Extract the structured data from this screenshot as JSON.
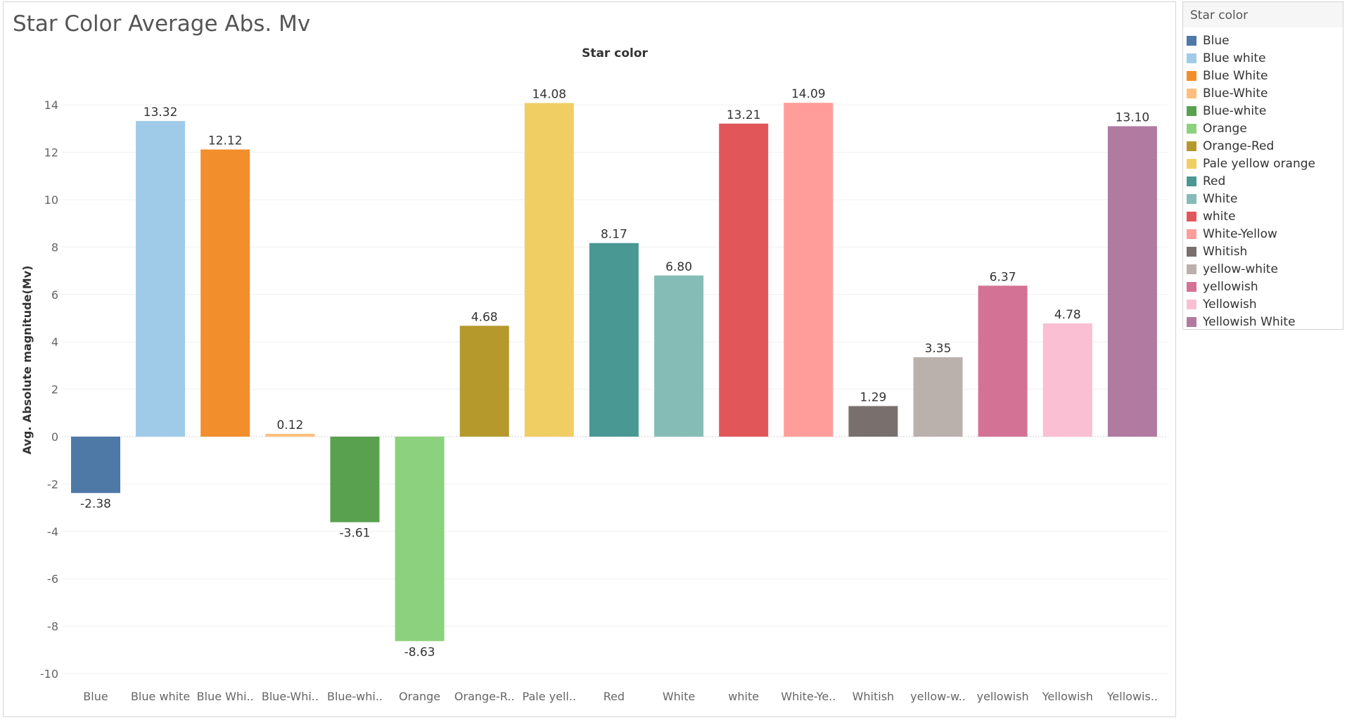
{
  "sheet": {
    "title": "Star Color Average Abs. Mv"
  },
  "chart_data": {
    "type": "bar",
    "title": "Star Color Average Abs. Mv",
    "column_header": "Star color",
    "ylabel": "Avg. Absolute magnitude(Mv)",
    "xlabel": "",
    "ylim": [
      -11,
      14.8
    ],
    "yticks": [
      -10,
      -8,
      -6,
      -4,
      -2,
      0,
      2,
      4,
      6,
      8,
      10,
      12,
      14
    ],
    "grid": true,
    "legend_position": "right",
    "categories": [
      "Blue",
      "Blue white",
      "Blue White",
      "Blue-White",
      "Blue-white",
      "Orange",
      "Orange-Red",
      "Pale yellow orange",
      "Red",
      "White",
      "white",
      "White-Yellow",
      "Whitish",
      "yellow-white",
      "yellowish",
      "Yellowish",
      "Yellowish White"
    ],
    "tick_labels": [
      "Blue",
      "Blue white",
      "Blue Whi..",
      "Blue-Whi..",
      "Blue-whi..",
      "Orange",
      "Orange-R..",
      "Pale yell..",
      "Red",
      "White",
      "white",
      "White-Ye..",
      "Whitish",
      "yellow-w..",
      "yellowish",
      "Yellowish",
      "Yellowis.."
    ],
    "values": [
      -2.38,
      13.32,
      12.12,
      0.12,
      -3.61,
      -8.63,
      4.68,
      14.08,
      8.17,
      6.8,
      13.21,
      14.09,
      1.29,
      3.35,
      6.37,
      4.78,
      13.1
    ],
    "value_labels": [
      "-2.38",
      "13.32",
      "12.12",
      "0.12",
      "-3.61",
      "-8.63",
      "4.68",
      "14.08",
      "8.17",
      "6.80",
      "13.21",
      "14.09",
      "1.29",
      "3.35",
      "6.37",
      "4.78",
      "13.10"
    ],
    "colors": [
      "#4e79a7",
      "#a0cbe8",
      "#f28e2b",
      "#ffbe7d",
      "#59a14f",
      "#8cd17d",
      "#b6992d",
      "#f1ce63",
      "#499894",
      "#86bcb6",
      "#e15759",
      "#ff9d9a",
      "#79706e",
      "#bab0ac",
      "#d37295",
      "#fabfd2",
      "#b07aa1"
    ]
  },
  "legend": {
    "title": "Star color",
    "items": [
      {
        "label": "Blue",
        "color": "#4e79a7"
      },
      {
        "label": "Blue white",
        "color": "#a0cbe8"
      },
      {
        "label": "Blue White",
        "color": "#f28e2b"
      },
      {
        "label": "Blue-White",
        "color": "#ffbe7d"
      },
      {
        "label": "Blue-white",
        "color": "#59a14f"
      },
      {
        "label": "Orange",
        "color": "#8cd17d"
      },
      {
        "label": "Orange-Red",
        "color": "#b6992d"
      },
      {
        "label": "Pale yellow orange",
        "color": "#f1ce63"
      },
      {
        "label": "Red",
        "color": "#499894"
      },
      {
        "label": "White",
        "color": "#86bcb6"
      },
      {
        "label": "white",
        "color": "#e15759"
      },
      {
        "label": "White-Yellow",
        "color": "#ff9d9a"
      },
      {
        "label": "Whitish",
        "color": "#79706e"
      },
      {
        "label": "yellow-white",
        "color": "#bab0ac"
      },
      {
        "label": "yellowish",
        "color": "#d37295"
      },
      {
        "label": "Yellowish",
        "color": "#fabfd2"
      },
      {
        "label": "Yellowish White",
        "color": "#b07aa1"
      }
    ]
  }
}
